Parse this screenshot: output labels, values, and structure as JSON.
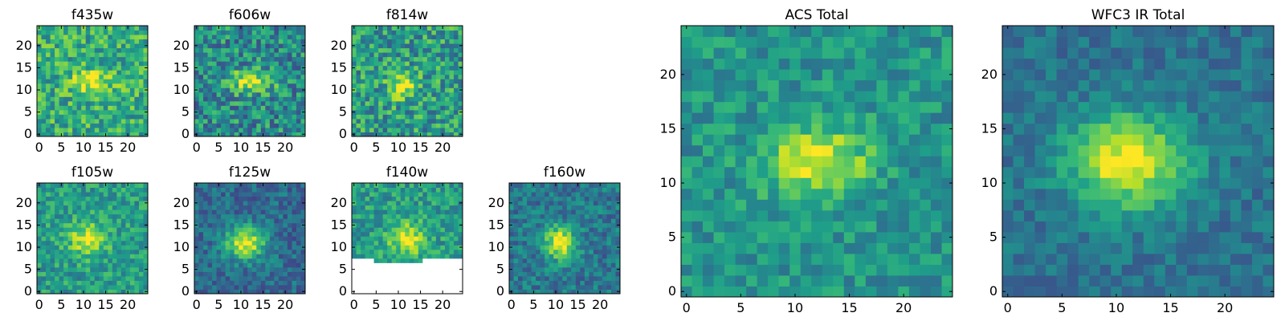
{
  "figure": {
    "description_free": true
  },
  "chart_data": [
    {
      "type": "heatmap",
      "title": "f435w",
      "xticks": [
        "0",
        "5",
        "10",
        "15",
        "20"
      ],
      "yticks": [
        "0",
        "5",
        "10",
        "15",
        "20"
      ],
      "xlim": [
        0,
        25
      ],
      "ylim": [
        0,
        25
      ],
      "grid_size": 25,
      "colormap": "viridis",
      "peak": {
        "x": 12,
        "y": 12
      }
    },
    {
      "type": "heatmap",
      "title": "f606w",
      "xticks": [
        "0",
        "5",
        "10",
        "15",
        "20"
      ],
      "yticks": [
        "0",
        "5",
        "10",
        "15",
        "20"
      ],
      "xlim": [
        0,
        25
      ],
      "ylim": [
        0,
        25
      ],
      "grid_size": 25,
      "colormap": "viridis",
      "peak": {
        "x": 12,
        "y": 12
      }
    },
    {
      "type": "heatmap",
      "title": "f814w",
      "xticks": [
        "0",
        "5",
        "10",
        "15",
        "20"
      ],
      "yticks": [
        "0",
        "5",
        "10",
        "15",
        "20"
      ],
      "xlim": [
        0,
        25
      ],
      "ylim": [
        0,
        25
      ],
      "grid_size": 25,
      "colormap": "viridis",
      "peak": {
        "x": 11,
        "y": 11
      }
    },
    {
      "type": "heatmap",
      "title": "f105w",
      "xticks": [
        "0",
        "5",
        "10",
        "15",
        "20"
      ],
      "yticks": [
        "0",
        "5",
        "10",
        "15",
        "20"
      ],
      "xlim": [
        0,
        25
      ],
      "ylim": [
        0,
        25
      ],
      "grid_size": 25,
      "colormap": "viridis",
      "peak": {
        "x": 11,
        "y": 12
      }
    },
    {
      "type": "heatmap",
      "title": "f125w",
      "xticks": [
        "0",
        "5",
        "10",
        "15",
        "20"
      ],
      "yticks": [
        "0",
        "5",
        "10",
        "15",
        "20"
      ],
      "xlim": [
        0,
        25
      ],
      "ylim": [
        0,
        25
      ],
      "grid_size": 25,
      "colormap": "viridis",
      "peak": {
        "x": 11,
        "y": 11
      }
    },
    {
      "type": "heatmap",
      "title": "f140w",
      "xticks": [
        "0",
        "5",
        "10",
        "15",
        "20"
      ],
      "yticks": [
        "0",
        "5",
        "10",
        "15",
        "20"
      ],
      "xlim": [
        0,
        25
      ],
      "ylim": [
        0,
        25
      ],
      "grid_size": 25,
      "colormap": "viridis",
      "peak": {
        "x": 12,
        "y": 12
      },
      "missing_below_y": 8
    },
    {
      "type": "heatmap",
      "title": "f160w",
      "xticks": [
        "0",
        "5",
        "10",
        "15",
        "20"
      ],
      "yticks": [
        "0",
        "5",
        "10",
        "15",
        "20"
      ],
      "xlim": [
        0,
        25
      ],
      "ylim": [
        0,
        25
      ],
      "grid_size": 25,
      "colormap": "viridis",
      "peak": {
        "x": 11,
        "y": 11
      }
    },
    {
      "type": "heatmap",
      "title": "ACS Total",
      "xticks": [
        "0",
        "5",
        "10",
        "15",
        "20"
      ],
      "yticks": [
        "0",
        "5",
        "10",
        "15",
        "20"
      ],
      "xlim": [
        0,
        25
      ],
      "ylim": [
        0,
        25
      ],
      "grid_size": 25,
      "colormap": "viridis",
      "peak": {
        "x": 12,
        "y": 12
      }
    },
    {
      "type": "heatmap",
      "title": "WFC3 IR Total",
      "xticks": [
        "0",
        "5",
        "10",
        "15",
        "20"
      ],
      "yticks": [
        "0",
        "5",
        "10",
        "15",
        "20"
      ],
      "xlim": [
        0,
        25
      ],
      "ylim": [
        0,
        25
      ],
      "grid_size": 25,
      "colormap": "viridis",
      "peak": {
        "x": 11,
        "y": 12
      }
    }
  ]
}
